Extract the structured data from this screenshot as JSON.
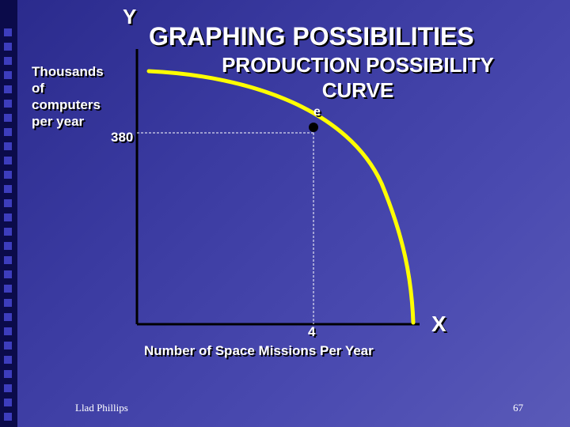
{
  "slide": {
    "title": "GRAPHING POSSIBILITIES",
    "subtitle_line1": "PRODUCTION POSSIBILITY",
    "subtitle_line2": "CURVE",
    "footer_author": "Llad Phillips",
    "page_number": "67"
  },
  "colors": {
    "curve": "#ffff00",
    "axes": "#000000",
    "text": "#ffffff",
    "background": "#3a3aa0"
  },
  "chart_data": {
    "type": "line",
    "title": "PRODUCTION POSSIBILITY CURVE",
    "y_axis_letter": "Y",
    "x_axis_letter": "X",
    "ylabel_lines": [
      "Thousands",
      "of",
      "computers",
      "per year"
    ],
    "xlabel": "Number of Space Missions Per Year",
    "x_tick_label": "4",
    "y_tick_label": "380",
    "point": {
      "label": "e",
      "x": 4,
      "y": 380
    }
  }
}
